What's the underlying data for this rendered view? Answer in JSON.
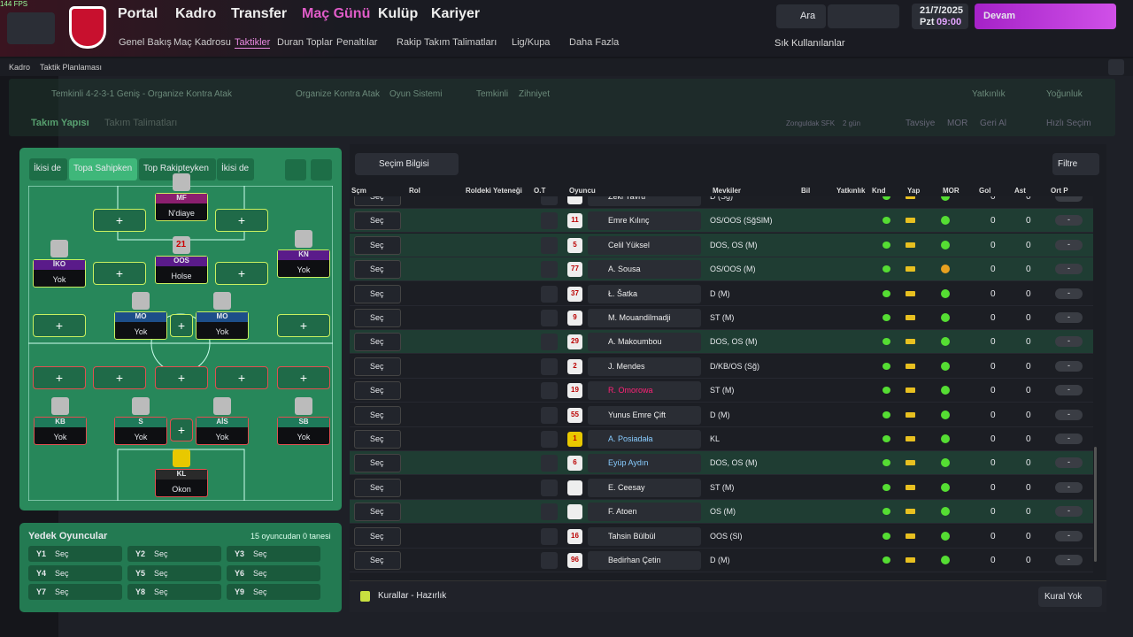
{
  "status": {
    "fps": "144 FPS"
  },
  "nav": {
    "main": [
      "Portal",
      "Kadro",
      "Transfer",
      "Maç Günü",
      "Kulüp",
      "Kariyer"
    ],
    "sub": [
      "Genel Bakış",
      "Maç Kadrosu",
      "Taktikler",
      "Duran Toplar",
      "Penaltılar",
      "Rakip Takım Talimatları",
      "Lig/Kupa",
      "Daha Fazla"
    ],
    "search": "Ara",
    "date": "21/7/2025",
    "day": "Pzt",
    "time": "09:00",
    "continue": "Devam",
    "favorites": "Sık Kullanılanlar"
  },
  "breadcrumb": [
    "Kadro",
    "Taktik Planlaması"
  ],
  "tactic": {
    "name": "Temkinli 4-2-3-1 Geniş - Organize Kontra Atak",
    "system": "Organize Kontra Atak",
    "system_label": "Oyun Sistemi",
    "mentality": "Temkinli",
    "mentality_label": "Zihniyet",
    "familiarity": "Yatkınlık",
    "intensity": "Yoğunluk"
  },
  "tabs": {
    "items": [
      "Takım Yapısı",
      "Takım Talimatları"
    ],
    "next_match": "Zonguldak SFK",
    "days": "2 gün",
    "advice": "Tavsiye",
    "mor": "MOR",
    "undo": "Geri Al",
    "quick": "Hızlı Seçim"
  },
  "pitch": {
    "modes": [
      "İkisi de",
      "Topa Sahipken",
      "Top Rakipteyken",
      "İkisi de"
    ],
    "players": [
      {
        "pos": "MF",
        "name": "N'diaye"
      },
      {
        "pos": "İKO",
        "name": "Yok"
      },
      {
        "pos": "OOS",
        "name": "Holse",
        "number": "21"
      },
      {
        "pos": "KN",
        "name": "Yok"
      },
      {
        "pos": "MO",
        "name": "Yok"
      },
      {
        "pos": "MO",
        "name": "Yok"
      },
      {
        "pos": "KB",
        "name": "Yok"
      },
      {
        "pos": "S",
        "name": "Yok"
      },
      {
        "pos": "AİS",
        "name": "Yok"
      },
      {
        "pos": "SB",
        "name": "Yok"
      },
      {
        "pos": "KL",
        "name": "Okon"
      }
    ]
  },
  "subs": {
    "title": "Yedek Oyuncular",
    "count": "15 oyuncudan 0 tanesi",
    "slots": [
      {
        "id": "Y1",
        "value": "Seç"
      },
      {
        "id": "Y2",
        "value": "Seç"
      },
      {
        "id": "Y3",
        "value": "Seç"
      },
      {
        "id": "Y4",
        "value": "Seç"
      },
      {
        "id": "Y5",
        "value": "Seç"
      },
      {
        "id": "Y6",
        "value": "Seç"
      },
      {
        "id": "Y7",
        "value": "Seç"
      },
      {
        "id": "Y8",
        "value": "Seç"
      },
      {
        "id": "Y9",
        "value": "Seç"
      }
    ]
  },
  "table": {
    "info": "Seçim Bilgisi",
    "filter": "Filtre",
    "headers": [
      "Sçm",
      "Rol",
      "Roldeki Yeteneği",
      "O.T",
      "Oyuncu",
      "Mevkiler",
      "Bil",
      "Yatkınlık",
      "Knd",
      "Yap",
      "MOR",
      "Gol",
      "Ast",
      "Ort P"
    ],
    "rows": [
      {
        "select": "Seç",
        "name": "Zeki Yavru",
        "positions": "D (Sğ)",
        "gol": 0,
        "ast": 0,
        "avg": "-"
      },
      {
        "select": "Seç",
        "number": "11",
        "name": "Emre Kılınç",
        "positions": "OS/OOS (SğSlM)",
        "gol": 0,
        "ast": 0,
        "avg": "-"
      },
      {
        "select": "Seç",
        "number": "5",
        "name": "Celil Yüksel",
        "positions": "DOS, OS (M)",
        "gol": 0,
        "ast": 0,
        "avg": "-"
      },
      {
        "select": "Seç",
        "number": "77",
        "name": "A. Sousa",
        "positions": "OS/OOS (M)",
        "gol": 0,
        "ast": 0,
        "avg": "-"
      },
      {
        "select": "Seç",
        "number": "37",
        "name": "Ł. Šatka",
        "positions": "D (M)",
        "gol": 0,
        "ast": 0,
        "avg": "-"
      },
      {
        "select": "Seç",
        "number": "9",
        "name": "M. Mouandilmadji",
        "positions": "ST (M)",
        "gol": 0,
        "ast": 0,
        "avg": "-"
      },
      {
        "select": "Seç",
        "number": "29",
        "name": "A. Makoumbou",
        "positions": "DOS, OS (M)",
        "gol": 0,
        "ast": 0,
        "avg": "-"
      },
      {
        "select": "Seç",
        "number": "2",
        "name": "J. Mendes",
        "positions": "D/KB/OS (Sğ)",
        "gol": 0,
        "ast": 0,
        "avg": "-"
      },
      {
        "select": "Seç",
        "number": "19",
        "name": "R. Omorowa",
        "positions": "ST (M)",
        "gol": 0,
        "ast": 0,
        "avg": "-"
      },
      {
        "select": "Seç",
        "number": "55",
        "name": "Yunus Emre Çift",
        "positions": "D (M)",
        "gol": 0,
        "ast": 0,
        "avg": "-"
      },
      {
        "select": "Seç",
        "number": "1",
        "name": "A. Posiadała",
        "positions": "KL",
        "gol": 0,
        "ast": 0,
        "avg": "-"
      },
      {
        "select": "Seç",
        "number": "6",
        "name": "Eyüp Aydın",
        "positions": "DOS, OS (M)",
        "gol": 0,
        "ast": 0,
        "avg": "-"
      },
      {
        "select": "Seç",
        "name": "E. Ceesay",
        "positions": "ST (M)",
        "gol": 0,
        "ast": 0,
        "avg": "-"
      },
      {
        "select": "Seç",
        "name": "F. Atoen",
        "positions": "OS (M)",
        "gol": 0,
        "ast": 0,
        "avg": "-"
      },
      {
        "select": "Seç",
        "number": "16",
        "name": "Tahsin Bülbül",
        "positions": "OOS (Sl)",
        "gol": 0,
        "ast": 0,
        "avg": "-"
      },
      {
        "select": "Seç",
        "number": "96",
        "name": "Bedirhan Çetin",
        "positions": "D (M)",
        "gol": 0,
        "ast": 0,
        "avg": "-"
      }
    ]
  },
  "footer": {
    "rules": "Kurallar - Hazırlık",
    "none": "Kural Yok"
  }
}
